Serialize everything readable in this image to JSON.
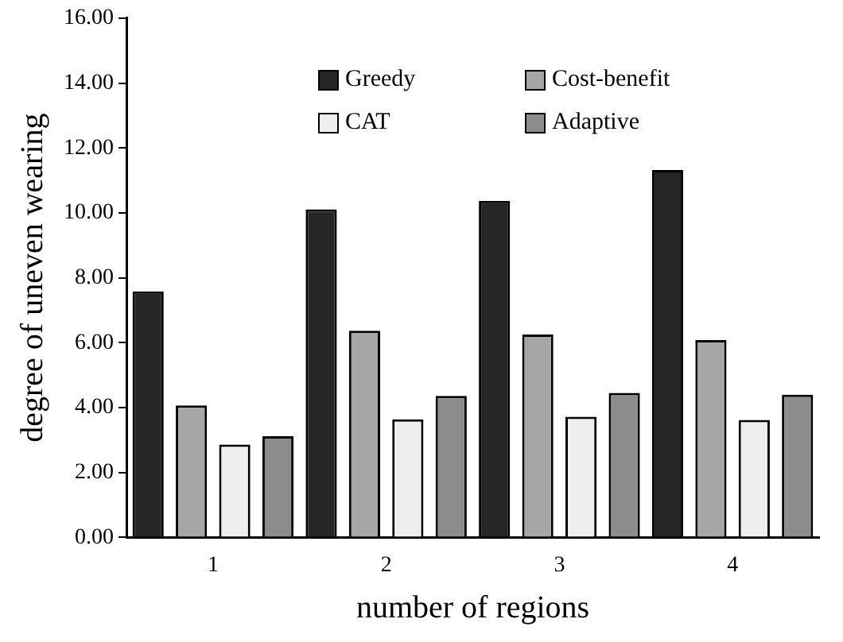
{
  "chart_data": {
    "type": "bar",
    "xlabel": "number of regions",
    "ylabel": "degree of uneven wearing",
    "categories": [
      "1",
      "2",
      "3",
      "4"
    ],
    "series": [
      {
        "name": "Greedy",
        "color": "#262626",
        "values": [
          7.58,
          10.11,
          10.37,
          11.32
        ]
      },
      {
        "name": "Cost-benefit",
        "color": "#a6a6a6",
        "values": [
          4.07,
          6.37,
          6.25,
          6.08
        ]
      },
      {
        "name": "CAT",
        "color": "#eeeeee",
        "values": [
          2.86,
          3.64,
          3.72,
          3.62
        ]
      },
      {
        "name": "Adaptive",
        "color": "#8c8c8c",
        "values": [
          3.12,
          4.36,
          4.45,
          4.4
        ]
      }
    ],
    "ylim": [
      0,
      16
    ],
    "yticks": [
      {
        "value": 0,
        "label": "0.00"
      },
      {
        "value": 2,
        "label": "2.00"
      },
      {
        "value": 4,
        "label": "4.00"
      },
      {
        "value": 6,
        "label": "6.00"
      },
      {
        "value": 8,
        "label": "8.00"
      },
      {
        "value": 10,
        "label": "10.00"
      },
      {
        "value": 12,
        "label": "12.00"
      },
      {
        "value": 14,
        "label": "14.00"
      },
      {
        "value": 16,
        "label": "16.00"
      }
    ],
    "grid": false,
    "legend": "top"
  }
}
